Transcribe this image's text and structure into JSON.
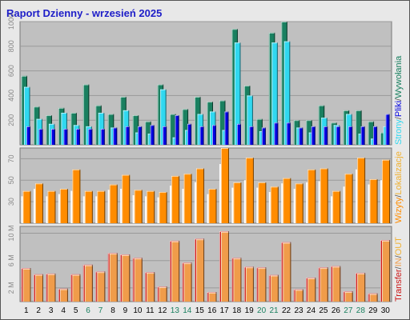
{
  "title": "Raport Dzienny -  wrzesień 2025",
  "colors": {
    "frame_bg": "#e8e8e8",
    "panel_bg": "#c0c0c0",
    "title": "#1e1ec8",
    "grid": "#9a9a9a",
    "pages": "#1a8060",
    "files": "#30d8f0",
    "visits": "#0000e0",
    "hits_orange": "#ff8c00",
    "bytes_dark": "#cc1414",
    "bytes_light": "#f09c4a",
    "weekend_label": "#1a8060",
    "day_label": "#000000",
    "tick_label": "#888888"
  },
  "chart_data": [
    {
      "type": "bar",
      "panel": "top",
      "ylim": [
        0,
        1000
      ],
      "y_ticks": [
        {
          "value": 200,
          "label": "200"
        },
        {
          "value": 400,
          "label": "400"
        },
        {
          "value": 600,
          "label": "600"
        },
        {
          "value": 800,
          "label": "800"
        },
        {
          "value": 1000,
          "label": "1000"
        }
      ],
      "right_label_parts": [
        {
          "text": "Strony",
          "color": "#30d8f0"
        },
        {
          "text": "/",
          "color": "#555555"
        },
        {
          "text": "Pliki",
          "color": "#0000e0"
        },
        {
          "text": "/",
          "color": "#555555"
        },
        {
          "text": "Wywołania",
          "color": "#1a8060"
        }
      ],
      "categories": [
        "1",
        "2",
        "3",
        "4",
        "5",
        "6",
        "7",
        "8",
        "9",
        "10",
        "11",
        "12",
        "13",
        "14",
        "15",
        "16",
        "17",
        "18",
        "19",
        "20",
        "21",
        "22",
        "23",
        "24",
        "25",
        "26",
        "27",
        "28",
        "29",
        "30"
      ],
      "series": [
        {
          "role": "hits",
          "values": [
            560,
            310,
            240,
            300,
            260,
            490,
            320,
            250,
            390,
            240,
            190,
            490,
            250,
            290,
            390,
            350,
            360,
            940,
            480,
            210,
            910,
            1000,
            200,
            200,
            320,
            180,
            280,
            280,
            190,
            100
          ]
        },
        {
          "role": "files",
          "values": [
            470,
            210,
            170,
            260,
            160,
            150,
            260,
            140,
            280,
            100,
            90,
            450,
            60,
            120,
            250,
            270,
            120,
            830,
            400,
            110,
            830,
            840,
            140,
            100,
            220,
            160,
            250,
            90,
            50,
            150
          ]
        },
        {
          "role": "visits",
          "values": [
            150,
            130,
            130,
            130,
            130,
            130,
            130,
            140,
            150,
            150,
            160,
            150,
            240,
            170,
            150,
            160,
            270,
            170,
            150,
            140,
            180,
            180,
            140,
            150,
            150,
            150,
            150,
            150,
            150,
            250
          ]
        }
      ]
    },
    {
      "type": "bar",
      "panel": "middle",
      "ylim": [
        10,
        80
      ],
      "y_ticks": [
        {
          "value": 30,
          "label": "30"
        },
        {
          "value": 50,
          "label": "50"
        },
        {
          "value": 70,
          "label": "70"
        }
      ],
      "right_label_parts": [
        {
          "text": "Wizyty",
          "color": "#ff8c00"
        },
        {
          "text": "/",
          "color": "#555555"
        },
        {
          "text": "Lokalizacje",
          "color": "#f0b030"
        }
      ],
      "categories": [
        "1",
        "2",
        "3",
        "4",
        "5",
        "6",
        "7",
        "8",
        "9",
        "10",
        "11",
        "12",
        "13",
        "14",
        "15",
        "16",
        "17",
        "18",
        "19",
        "20",
        "21",
        "22",
        "23",
        "24",
        "25",
        "26",
        "27",
        "28",
        "29",
        "30"
      ],
      "series": [
        {
          "role": "visits",
          "values": [
            40,
            47,
            40,
            42,
            60,
            40,
            40,
            46,
            55,
            41,
            40,
            39,
            54,
            56,
            61,
            42,
            80,
            48,
            71,
            48,
            44,
            52,
            47,
            60,
            61,
            40,
            56,
            71,
            51,
            69
          ]
        },
        {
          "role": "sites",
          "values": [
            35,
            42,
            35,
            37,
            40,
            35,
            35,
            41,
            42,
            36,
            35,
            34,
            45,
            42,
            48,
            37,
            65,
            43,
            50,
            43,
            39,
            47,
            42,
            48,
            49,
            35,
            44,
            60,
            46,
            50
          ]
        }
      ]
    },
    {
      "type": "bar",
      "panel": "bottom",
      "ylim": [
        0,
        11
      ],
      "y_ticks": [
        {
          "value": 2,
          "label": "2 M"
        },
        {
          "value": 6,
          "label": "6 M"
        },
        {
          "value": 10,
          "label": "10 M"
        }
      ],
      "right_label_parts": [
        {
          "text": "Transfer",
          "color": "#cc1414"
        },
        {
          "text": "/",
          "color": "#555555"
        },
        {
          "text": "IN",
          "color": "#f09c4a"
        },
        {
          "text": "/",
          "color": "#555555"
        },
        {
          "text": "OUT",
          "color": "#f0b030"
        }
      ],
      "categories": [
        "1",
        "2",
        "3",
        "4",
        "5",
        "6",
        "7",
        "8",
        "9",
        "10",
        "11",
        "12",
        "13",
        "14",
        "15",
        "16",
        "17",
        "18",
        "19",
        "20",
        "21",
        "22",
        "23",
        "24",
        "25",
        "26",
        "27",
        "28",
        "29",
        "30"
      ],
      "series": [
        {
          "role": "bytes_in",
          "values": [
            4.9,
            4.0,
            4.1,
            1.9,
            4.0,
            5.4,
            4.4,
            7.1,
            6.9,
            6.4,
            4.3,
            2.2,
            8.9,
            5.7,
            9.2,
            1.4,
            10.3,
            6.4,
            5.1,
            5.0,
            3.9,
            8.7,
            1.8,
            3.5,
            5.0,
            5.2,
            1.5,
            4.2,
            1.2,
            9.0
          ]
        },
        {
          "role": "bytes_out",
          "values": [
            4.8,
            3.9,
            4.0,
            1.8,
            3.9,
            5.3,
            4.3,
            7.0,
            6.8,
            6.3,
            4.2,
            2.1,
            8.8,
            5.6,
            9.1,
            1.3,
            10.2,
            6.3,
            5.0,
            4.9,
            3.8,
            8.6,
            1.7,
            3.4,
            4.9,
            5.1,
            1.4,
            4.1,
            1.1,
            8.9
          ]
        }
      ]
    }
  ],
  "x_labels": {
    "days": [
      "1",
      "2",
      "3",
      "4",
      "5",
      "6",
      "7",
      "8",
      "9",
      "10",
      "11",
      "12",
      "13",
      "14",
      "15",
      "16",
      "17",
      "18",
      "19",
      "20",
      "21",
      "22",
      "23",
      "24",
      "25",
      "26",
      "27",
      "28",
      "29",
      "30"
    ],
    "weekend_days": [
      "6",
      "7",
      "13",
      "14",
      "20",
      "21",
      "27",
      "28"
    ]
  }
}
